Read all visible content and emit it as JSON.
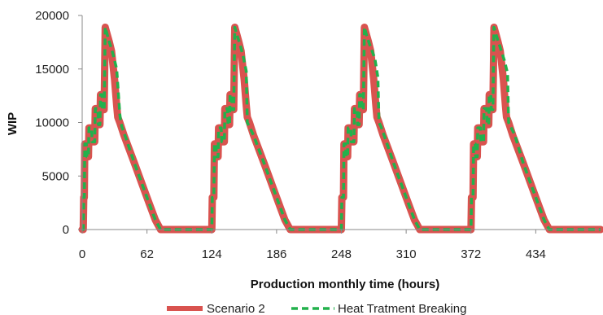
{
  "chart_data": {
    "type": "line",
    "title": "",
    "xlabel": "Production monthly time (hours)",
    "ylabel": "WIP",
    "xlim": [
      0,
      496
    ],
    "ylim": [
      0,
      20000
    ],
    "x_ticks": [
      0,
      62,
      124,
      186,
      248,
      310,
      372,
      434
    ],
    "y_ticks": [
      0,
      5000,
      10000,
      15000,
      20000
    ],
    "grid": false,
    "legend_position": "bottom",
    "series": [
      {
        "name": "Scenario 2",
        "color": "#d9534f",
        "style": "solid",
        "x": [
          0,
          1,
          1.5,
          2,
          2.5,
          4,
          4.5,
          6,
          6.5,
          9,
          9.5,
          12,
          12.5,
          15,
          15.5,
          17,
          17.5,
          19,
          19.5,
          21,
          22,
          24,
          26,
          28,
          31,
          33,
          34,
          36,
          40,
          50,
          62,
          70,
          75,
          78,
          82,
          90,
          100,
          110,
          118,
          124,
          124.5,
          126,
          126.5,
          128,
          128.5,
          130,
          130.5,
          133,
          133.5,
          136,
          136.5,
          139,
          139.5,
          141,
          141.5,
          143,
          143.5,
          145,
          146,
          148,
          150,
          152,
          155,
          157,
          158,
          160,
          164,
          174,
          186,
          194,
          199,
          202,
          206,
          214,
          224,
          234,
          242,
          248,
          248.5,
          250,
          250.5,
          252,
          252.5,
          254,
          254.5,
          257,
          257.5,
          260,
          260.5,
          263,
          263.5,
          265,
          265.5,
          267,
          267.5,
          269,
          270,
          272,
          274,
          276,
          279,
          281,
          282,
          284,
          288,
          298,
          310,
          318,
          323,
          326,
          330,
          338,
          348,
          358,
          366,
          372,
          372.5,
          374,
          374.5,
          376,
          376.5,
          378,
          378.5,
          381,
          381.5,
          384,
          384.5,
          387,
          387.5,
          389,
          389.5,
          391,
          391.5,
          393,
          394,
          396,
          398,
          400,
          403,
          405,
          406,
          408,
          412,
          422,
          434,
          442,
          447,
          450,
          454,
          462,
          472,
          482,
          490,
          496
        ],
        "y": [
          0,
          0,
          3000,
          3000,
          8000,
          8000,
          6800,
          6800,
          9500,
          9500,
          8200,
          8200,
          11300,
          11300,
          9800,
          9800,
          12600,
          12600,
          11200,
          11200,
          18900,
          18200,
          17500,
          16700,
          14000,
          11600,
          10500,
          10000,
          8800,
          6200,
          3000,
          900,
          0,
          0,
          0,
          0,
          0,
          0,
          0,
          0,
          3000,
          3000,
          8000,
          8000,
          6800,
          6800,
          9500,
          9500,
          8200,
          8200,
          11300,
          11300,
          9800,
          9800,
          12600,
          12600,
          11200,
          11200,
          18900,
          18200,
          17500,
          16700,
          14000,
          11600,
          10500,
          10000,
          8800,
          6200,
          3000,
          900,
          0,
          0,
          0,
          0,
          0,
          0,
          0,
          0,
          3000,
          3000,
          8000,
          8000,
          6800,
          6800,
          9500,
          9500,
          8200,
          8200,
          11300,
          11300,
          9800,
          9800,
          12600,
          12600,
          11200,
          11200,
          18900,
          18200,
          17500,
          16700,
          14000,
          11600,
          10500,
          10000,
          8800,
          6200,
          3000,
          900,
          0,
          0,
          0,
          0,
          0,
          0,
          0,
          0,
          3000,
          3000,
          8000,
          8000,
          6800,
          6800,
          9500,
          9500,
          8200,
          8200,
          11300,
          11300,
          9800,
          9800,
          12600,
          12600,
          11200,
          11200,
          18900,
          18200,
          17500,
          16700,
          14000,
          11600,
          10500,
          10000,
          8800,
          6200,
          3000,
          900,
          0,
          0,
          0,
          0,
          0,
          0,
          0,
          0
        ]
      },
      {
        "name": "Heat Tratment Breaking",
        "color": "#22b14c",
        "style": "dashed",
        "x": [
          0,
          1,
          1.5,
          2,
          2.5,
          4,
          4.5,
          6,
          6.5,
          9,
          9.5,
          12,
          12.5,
          15,
          15.5,
          17,
          17.5,
          19,
          19.5,
          21,
          22,
          24,
          26,
          28,
          30,
          33,
          36,
          37,
          38,
          42,
          50,
          62,
          70,
          75,
          78,
          82,
          90,
          100,
          110,
          118,
          124,
          124.5,
          126,
          126.5,
          128,
          128.5,
          130,
          130.5,
          133,
          133.5,
          136,
          136.5,
          139,
          139.5,
          141,
          141.5,
          143,
          143.5,
          145,
          146,
          148,
          151,
          154,
          157,
          158,
          160,
          164,
          174,
          186,
          194,
          199,
          202,
          206,
          214,
          224,
          234,
          242,
          248,
          248.5,
          250,
          250.5,
          252,
          252.5,
          254,
          254.5,
          257,
          257.5,
          260,
          260.5,
          263,
          263.5,
          265,
          265.5,
          267,
          267.5,
          269,
          270,
          272,
          275,
          280,
          283,
          284,
          286,
          290,
          298,
          310,
          318,
          323,
          326,
          330,
          338,
          348,
          358,
          366,
          372,
          372.5,
          374,
          374.5,
          376,
          376.5,
          378,
          378.5,
          381,
          381.5,
          384,
          384.5,
          387,
          387.5,
          389,
          389.5,
          391,
          391.5,
          393,
          394,
          396,
          400,
          404,
          407,
          408,
          410,
          414,
          422,
          434,
          442,
          447,
          450,
          454,
          462,
          472,
          482,
          490,
          496
        ],
        "y": [
          0,
          0,
          3000,
          3000,
          8000,
          8000,
          6800,
          6800,
          9500,
          9500,
          8200,
          8200,
          11300,
          11300,
          9800,
          9800,
          12600,
          12600,
          11200,
          11200,
          18900,
          18200,
          17500,
          16900,
          16200,
          15000,
          10800,
          10000,
          9600,
          8500,
          6200,
          3000,
          900,
          0,
          0,
          0,
          0,
          0,
          0,
          0,
          0,
          3000,
          3000,
          8000,
          8000,
          6800,
          6800,
          9500,
          9500,
          8200,
          8200,
          11300,
          11300,
          9800,
          9800,
          12600,
          12600,
          11200,
          11200,
          18900,
          18200,
          17300,
          16200,
          14800,
          10000,
          9600,
          8800,
          6200,
          3000,
          900,
          0,
          0,
          0,
          0,
          0,
          0,
          0,
          0,
          3000,
          3000,
          8000,
          8000,
          6800,
          6800,
          9500,
          9500,
          8200,
          8200,
          11300,
          11300,
          9800,
          9800,
          12600,
          12600,
          11200,
          11200,
          18900,
          18200,
          17300,
          16000,
          14200,
          10000,
          9600,
          8500,
          6200,
          3000,
          900,
          0,
          0,
          0,
          0,
          0,
          0,
          0,
          0,
          3000,
          3000,
          8000,
          8000,
          6800,
          6800,
          9500,
          9500,
          8200,
          8200,
          11300,
          11300,
          9800,
          9800,
          12600,
          12600,
          11200,
          11200,
          18900,
          18200,
          17000,
          15800,
          14600,
          10000,
          9600,
          8800,
          6200,
          3000,
          900,
          0,
          0,
          0,
          0,
          0,
          0,
          0,
          0
        ]
      }
    ]
  }
}
